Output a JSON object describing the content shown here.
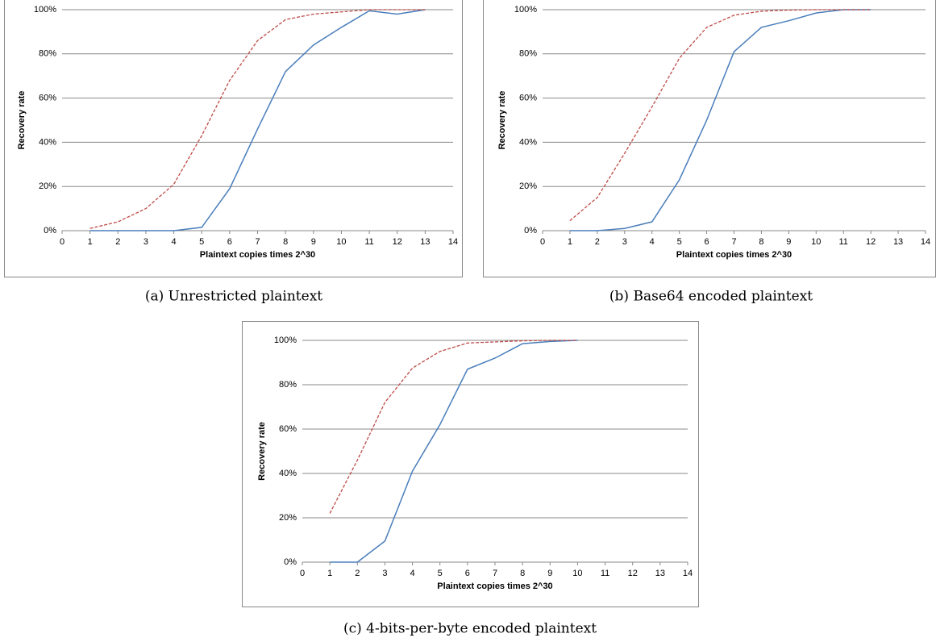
{
  "chart_data": [
    {
      "type": "line",
      "caption": "(a) Unrestricted plaintext",
      "ylabel": "Recovery rate",
      "xlabel": "Plaintext copies times 2^30",
      "x": [
        1,
        2,
        3,
        4,
        5,
        6,
        7,
        8,
        9,
        10,
        11,
        12,
        13
      ],
      "xlim": [
        0,
        14
      ],
      "xticks": [
        0,
        1,
        2,
        3,
        4,
        5,
        6,
        7,
        8,
        9,
        10,
        11,
        12,
        13,
        14
      ],
      "ylim": [
        0,
        100
      ],
      "yticks": [
        {
          "value": 0,
          "label": "0%"
        },
        {
          "value": 20,
          "label": "20%"
        },
        {
          "value": 40,
          "label": "40%"
        },
        {
          "value": 60,
          "label": "60%"
        },
        {
          "value": 80,
          "label": "80%"
        },
        {
          "value": 100,
          "label": "100%"
        }
      ],
      "grid": true,
      "series": [
        {
          "color": "#4a7ebb",
          "style": "solid",
          "values": [
            0,
            0,
            0,
            0,
            1.5,
            19,
            46,
            72,
            84,
            92,
            99.5,
            98,
            100
          ]
        },
        {
          "color": "#be4b48",
          "style": "dashed",
          "values": [
            1,
            4,
            10,
            21,
            43,
            68,
            86,
            95.5,
            98,
            99,
            100,
            100,
            100
          ]
        }
      ]
    },
    {
      "type": "line",
      "caption": "(b) Base64 encoded plaintext",
      "ylabel": "Recovery rate",
      "xlabel": "Plaintext copies times 2^30",
      "x": [
        1,
        2,
        3,
        4,
        5,
        6,
        7,
        8,
        9,
        10,
        11,
        12
      ],
      "xlim": [
        0,
        14
      ],
      "xticks": [
        0,
        1,
        2,
        3,
        4,
        5,
        6,
        7,
        8,
        9,
        10,
        11,
        12,
        13,
        14
      ],
      "ylim": [
        0,
        100
      ],
      "yticks": [
        {
          "value": 0,
          "label": "0%"
        },
        {
          "value": 20,
          "label": "20%"
        },
        {
          "value": 40,
          "label": "40%"
        },
        {
          "value": 60,
          "label": "60%"
        },
        {
          "value": 80,
          "label": "80%"
        },
        {
          "value": 100,
          "label": "100%"
        }
      ],
      "grid": true,
      "series": [
        {
          "color": "#4a7ebb",
          "style": "solid",
          "values": [
            0,
            0,
            1,
            4,
            23,
            50,
            81,
            92,
            95,
            98.5,
            100,
            100
          ]
        },
        {
          "color": "#be4b48",
          "style": "dashed",
          "values": [
            4.5,
            15,
            35,
            56,
            78,
            92,
            97.5,
            99.3,
            99.8,
            100,
            100,
            100
          ]
        }
      ]
    },
    {
      "type": "line",
      "caption": "(c) 4-bits-per-byte encoded plaintext",
      "ylabel": "Recovery rate",
      "xlabel": "Plaintext copies times 2^30",
      "x": [
        1,
        2,
        3,
        4,
        5,
        6,
        7,
        8,
        9,
        10
      ],
      "xlim": [
        0,
        14
      ],
      "xticks": [
        0,
        1,
        2,
        3,
        4,
        5,
        6,
        7,
        8,
        9,
        10,
        11,
        12,
        13,
        14
      ],
      "ylim": [
        0,
        100
      ],
      "yticks": [
        {
          "value": 0,
          "label": "0%"
        },
        {
          "value": 20,
          "label": "20%"
        },
        {
          "value": 40,
          "label": "40%"
        },
        {
          "value": 60,
          "label": "60%"
        },
        {
          "value": 80,
          "label": "80%"
        },
        {
          "value": 100,
          "label": "100%"
        }
      ],
      "grid": true,
      "series": [
        {
          "color": "#4a7ebb",
          "style": "solid",
          "values": [
            0,
            0,
            9.5,
            41,
            62,
            87,
            92,
            98.5,
            99.5,
            100
          ]
        },
        {
          "color": "#be4b48",
          "style": "dashed",
          "values": [
            22,
            46,
            72,
            87.5,
            95,
            98.8,
            99.3,
            99.8,
            100,
            100
          ]
        }
      ]
    }
  ]
}
